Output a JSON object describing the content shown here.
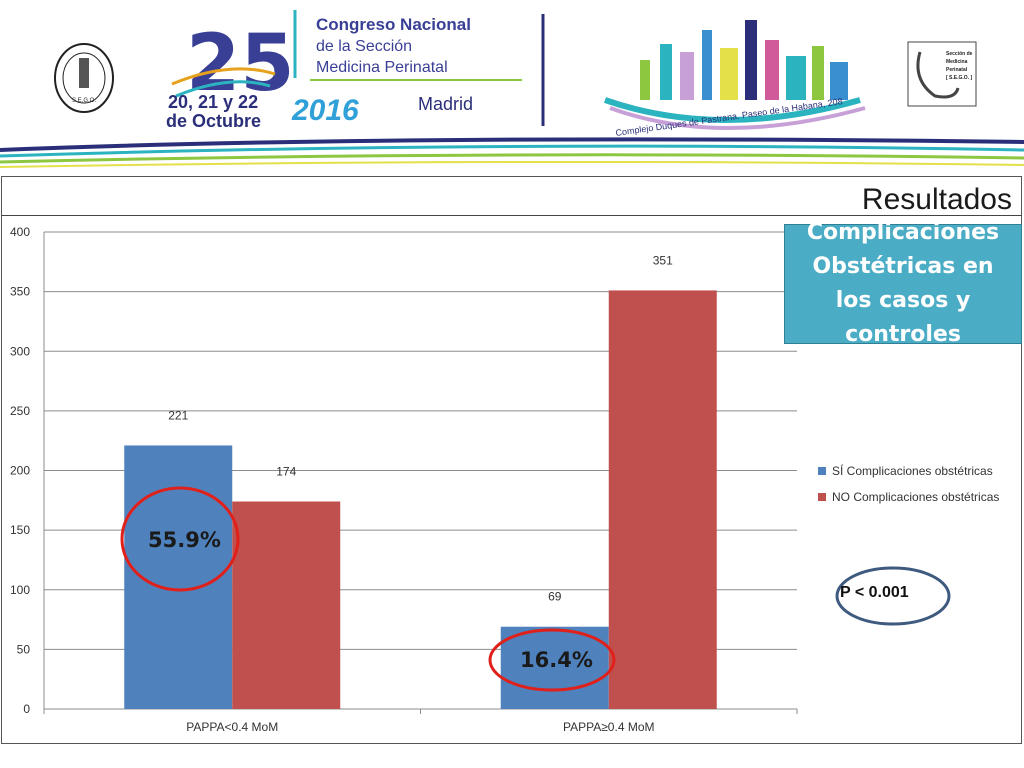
{
  "header": {
    "event_number": "25",
    "event_name_1": "Congreso Nacional",
    "event_name_2": "de la Sección",
    "event_name_3": "Medicina Perinatal",
    "dates_1": "20, 21 y 22",
    "dates_2": "de Octubre",
    "year": "2016",
    "city": "Madrid",
    "venue": "Complejo Duques de Pastrana. Paseo de la Habana, 208",
    "left_seal_text": "S.E.G.O.",
    "right_logo_1": "Sección de",
    "right_logo_2": "Medicina",
    "right_logo_3": "Perinatal",
    "right_logo_4": "[ S.E.G.O. ]"
  },
  "slide": {
    "title": "Resultados",
    "callout": "Complicaciones Obstétricas en los casos y controles",
    "p_value": "P < 0.001",
    "percent_1": "55.9%",
    "percent_2": "16.4%"
  },
  "colors": {
    "series_yes": "#4f81bd",
    "series_no": "#c0504d",
    "callout_bg": "#4bacc6",
    "circle_red": "#e0201b",
    "circle_blue": "#3f5a7f"
  },
  "chart_data": {
    "type": "bar",
    "categories": [
      "PAPPA<0.4 MoM",
      "PAPPA≥0.4 MoM"
    ],
    "series": [
      {
        "name": "SÍ Complicaciones obstétricas",
        "values": [
          221,
          69
        ]
      },
      {
        "name": "NO Complicaciones obstétricas",
        "values": [
          174,
          351
        ]
      }
    ],
    "ylim": [
      0,
      400
    ],
    "yticks": [
      0,
      50,
      100,
      150,
      200,
      250,
      300,
      350,
      400
    ],
    "grid": true,
    "legend": "right"
  }
}
